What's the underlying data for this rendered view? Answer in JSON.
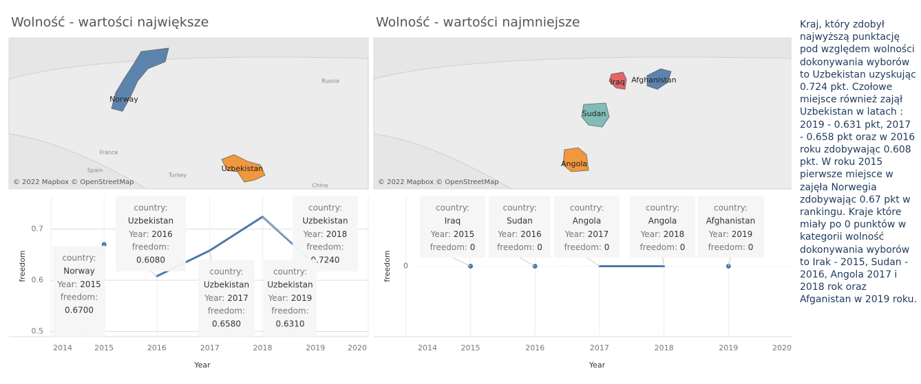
{
  "chart_data": [
    {
      "type": "line",
      "title": "Wolność - wartości największe",
      "x": [
        2015,
        2016,
        2017,
        2018,
        2019
      ],
      "series": [
        {
          "name": "freedom",
          "color": "#4e79a7",
          "values": [
            0.67,
            0.608,
            0.658,
            0.724,
            0.631
          ],
          "value_labels": [
            "0.6700",
            "0.6080",
            "0.6580",
            "0.7240",
            "0.6310"
          ]
        }
      ],
      "point_labels": [
        "Norway",
        "Uzbekistan",
        "Uzbekistan",
        "Uzbekistan",
        "Uzbekistan"
      ],
      "tooltip_fields": [
        "country:",
        "Year:",
        "freedom:"
      ],
      "xlim": [
        2013.2,
        2020
      ],
      "xticks": [
        2014,
        2015,
        2016,
        2017,
        2018,
        2019,
        2020
      ],
      "ylim": [
        0.49,
        0.765
      ],
      "yticks": [
        0.5,
        0.6,
        0.7
      ],
      "xlabel": "Year",
      "ylabel": "freedom",
      "grid": true,
      "map": {
        "countries": [
          {
            "name": "Norway",
            "color": "#4e79a7"
          },
          {
            "name": "Uzbekistan",
            "color": "#f28e2b"
          }
        ],
        "places": [
          "Russia",
          "France",
          "Spain",
          "Turkey",
          "China"
        ],
        "credit": "© 2022 Mapbox © OpenStreetMap"
      }
    },
    {
      "type": "line",
      "title": "Wolność - wartości najmniejsze",
      "x": [
        2015,
        2016,
        2017,
        2018,
        2019
      ],
      "series": [
        {
          "name": "freedom",
          "color": "#4e79a7",
          "values": [
            0,
            0,
            0,
            0,
            0
          ]
        }
      ],
      "point_labels": [
        "Iraq",
        "Sudan",
        "Angola",
        "Angola",
        "Afghanistan"
      ],
      "tooltip_fields": [
        "country:",
        "Year:",
        "freedom:"
      ],
      "xlim": [
        2013.5,
        2020
      ],
      "xticks": [
        2014,
        2015,
        2016,
        2017,
        2018,
        2019,
        2020
      ],
      "ylim": [
        -0.1,
        0.1
      ],
      "yticks": [
        0
      ],
      "xlabel": "Year",
      "ylabel": "freedom",
      "grid": true,
      "map": {
        "countries": [
          {
            "name": "Iraq",
            "color": "#e15759"
          },
          {
            "name": "Afghanistan",
            "color": "#4e79a7"
          },
          {
            "name": "Sudan",
            "color": "#76b7b2"
          },
          {
            "name": "Angola",
            "color": "#f28e2b"
          }
        ],
        "places": [],
        "credit": "© 2022 Mapbox © OpenStreetMap"
      }
    }
  ],
  "text": "Kraj, który zdobył najwyższą punktację pod względem wolności dokonywania wyborów to Uzbekistan uzyskując 0.724 pkt. Czołowe miejsce również zajął Uzbekistan w latach : 2019 - 0.631 pkt, 2017 - 0.658 pkt oraz w 2016 roku zdobywając 0.608 pkt. W roku 2015 pierwsze miejsce w zajęła Norwegia zdobywając 0.67 pkt w rankingu. Kraje które miały po 0 punktów w kategorii wolność dokonywania wyborów to Irak - 2015, Sudan - 2016, Angola 2017 i 2018 rok oraz Afganistan w 2019 roku."
}
